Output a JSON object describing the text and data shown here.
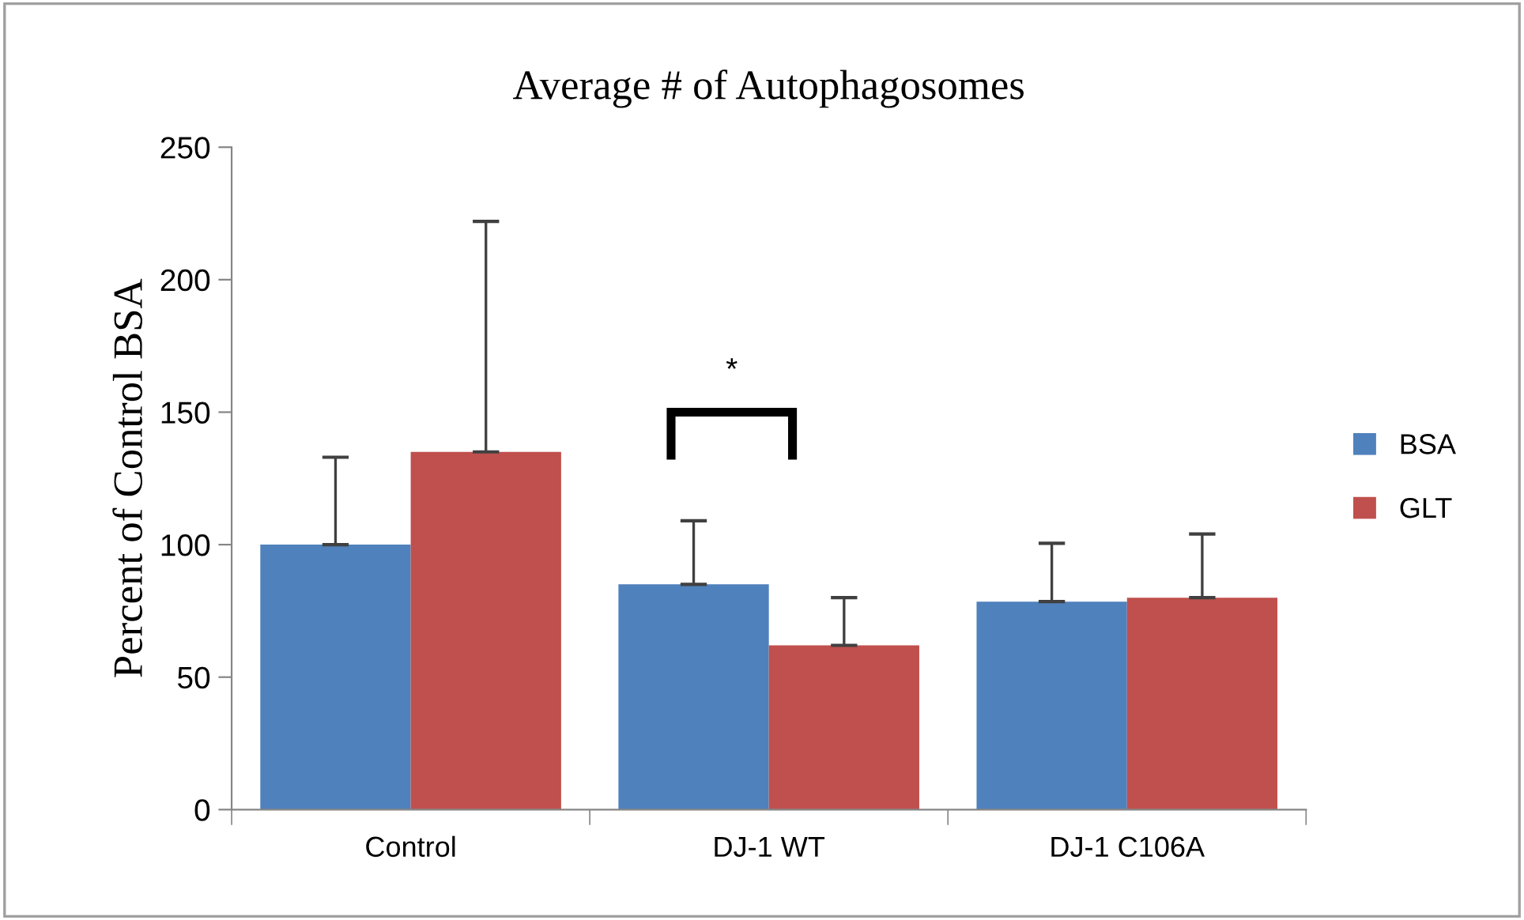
{
  "chart_data": {
    "type": "bar",
    "title": "Average # of Autophagosomes",
    "ylabel": "Percent of Control BSA",
    "categories": [
      "Control",
      "DJ-1 WT",
      "DJ-1 C106A"
    ],
    "series": [
      {
        "name": "BSA",
        "color": "#4f81bd",
        "values": [
          100,
          85,
          78.5
        ],
        "errors": [
          [
            100,
            133
          ],
          [
            85,
            109
          ],
          [
            78.5,
            100.5
          ]
        ]
      },
      {
        "name": "GLT",
        "color": "#c0504d",
        "values": [
          135,
          62,
          80
        ],
        "errors": [
          [
            135,
            222
          ],
          [
            62,
            80
          ],
          [
            80,
            104
          ]
        ]
      }
    ],
    "ylim": [
      0,
      250
    ],
    "yticks": [
      0,
      50,
      100,
      150,
      200,
      250
    ],
    "grid": false,
    "legend": "right",
    "annotations": [
      "*"
    ]
  }
}
